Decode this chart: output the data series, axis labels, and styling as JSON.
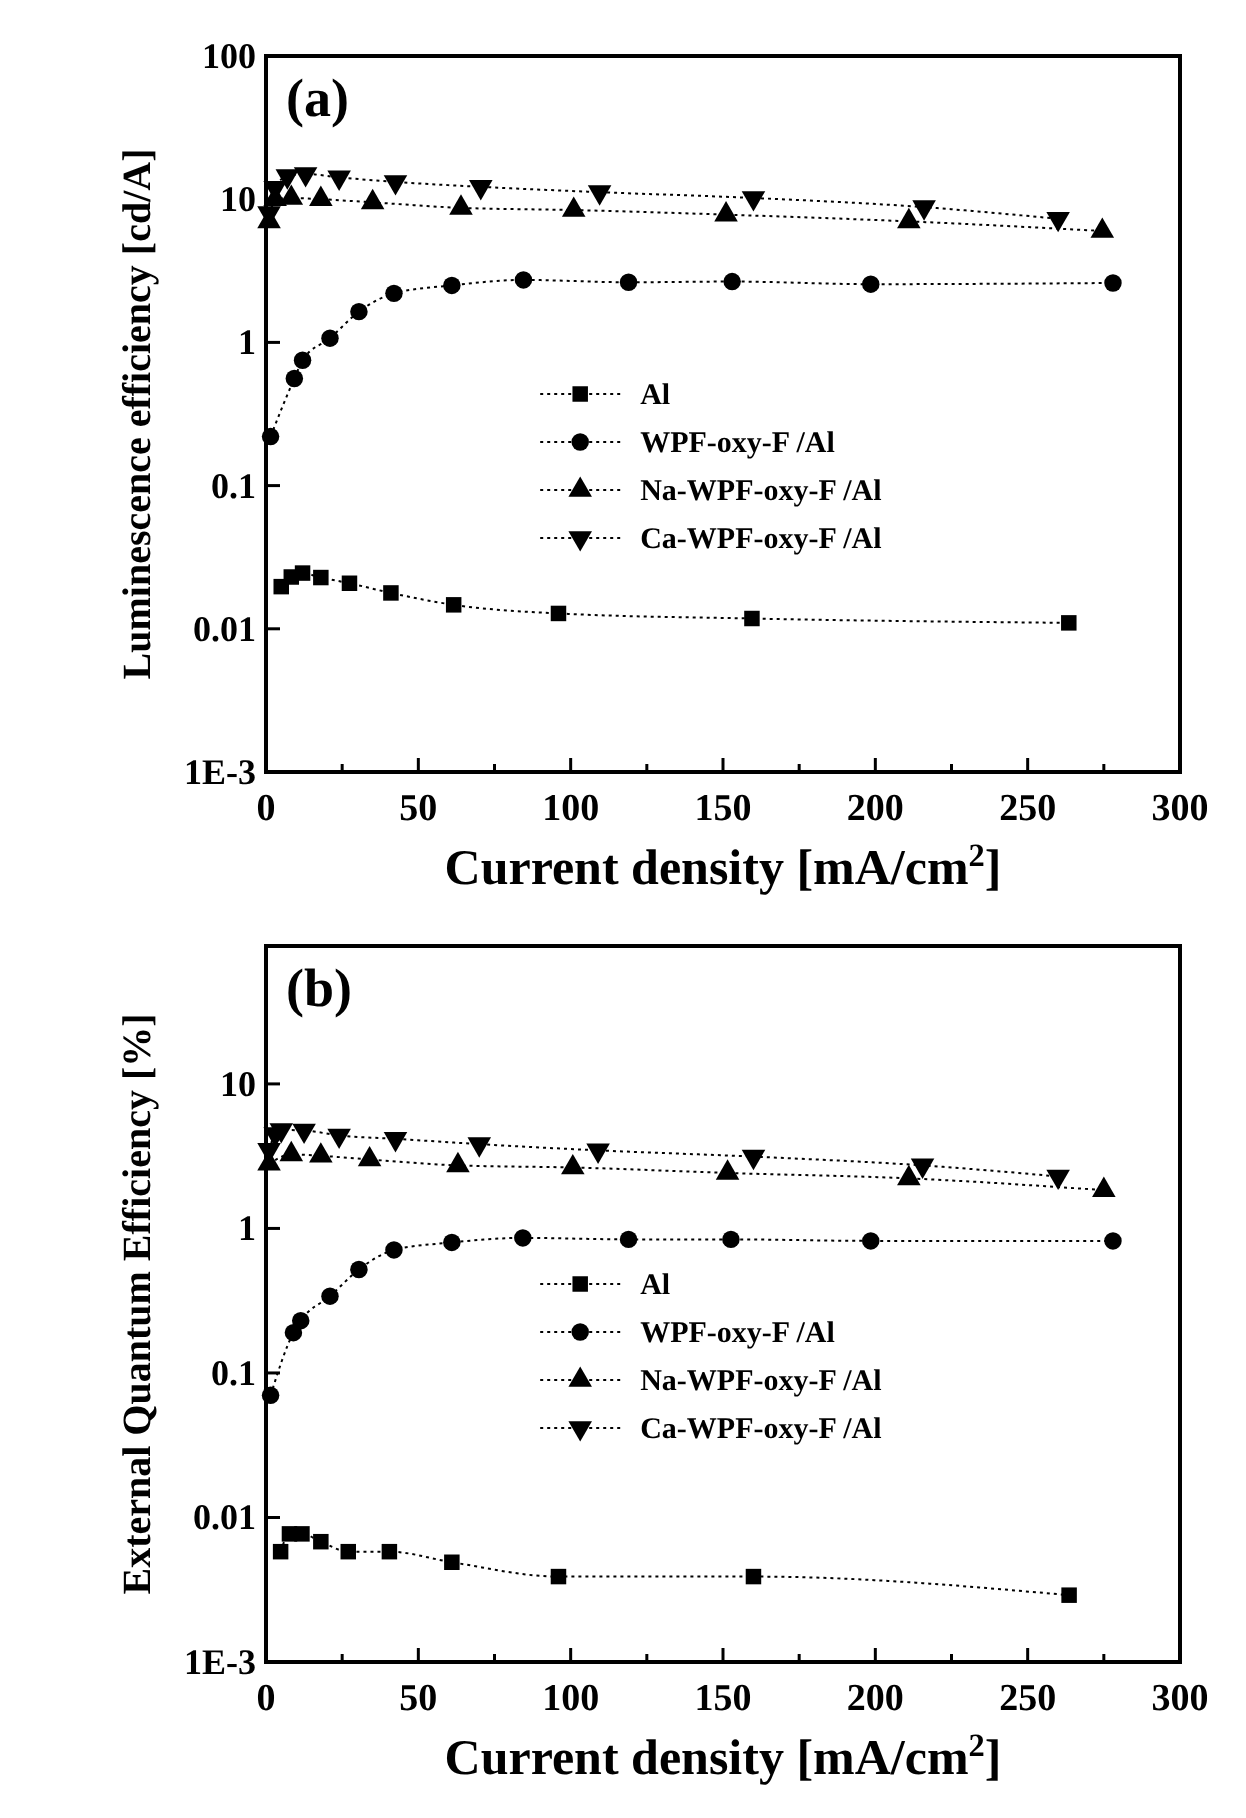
{
  "chart_data": [
    {
      "type": "line",
      "annotations": [
        "(a)"
      ],
      "xlabel": "Current density [mA/cm$^{2}$]",
      "ylabel": "Luminescence efficiency [cd/A]",
      "log": "y",
      "xlim": [
        0,
        300
      ],
      "ylim": [
        0.001,
        100
      ],
      "xticks": [
        0,
        {
          "value": 25,
          "label": null
        },
        50,
        {
          "value": 75,
          "label": null
        },
        100,
        {
          "value": 125,
          "label": null
        },
        150,
        {
          "value": 175,
          "label": null
        },
        200,
        {
          "value": 225,
          "label": null
        },
        250,
        {
          "value": 275,
          "label": null
        },
        300
      ],
      "yticks": [
        {
          "value": 0.001,
          "label": "1E-3"
        },
        0.01,
        0.1,
        1,
        10,
        100
      ],
      "legend": "center",
      "line_style": "dotted",
      "grid": false,
      "series": [
        {
          "name": "Al",
          "color": "#000000",
          "marker": "square",
          "x": [
            5,
            8.3,
            12,
            18,
            27.4,
            41,
            61.6,
            96,
            159.5,
            263.5
          ],
          "values": [
            0.0197,
            0.023,
            0.0245,
            0.0228,
            0.0208,
            0.0178,
            0.0147,
            0.0128,
            0.0118,
            0.011
          ]
        },
        {
          "name": "WPF-oxy-F /Al",
          "color": "#000000",
          "marker": "circle",
          "x": [
            1.5,
            9.3,
            12,
            21,
            30.5,
            42,
            61,
            84.5,
            119,
            153,
            198.5,
            278
          ],
          "values": [
            0.22,
            0.56,
            0.75,
            1.07,
            1.64,
            2.2,
            2.5,
            2.73,
            2.63,
            2.66,
            2.55,
            2.6
          ]
        },
        {
          "name": "Na-WPF-oxy-F /Al",
          "color": "#000000",
          "marker": "triangle",
          "x": [
            1,
            3,
            8.3,
            18,
            35,
            64,
            101,
            151,
            211,
            274.5
          ],
          "values": [
            7,
            10,
            10.2,
            10,
            9.5,
            8.7,
            8.4,
            7.8,
            7,
            6
          ]
        },
        {
          "name": "Ca-WPF-oxy-F /Al",
          "color": "#000000",
          "marker": "triangle-down",
          "x": [
            1,
            3,
            7,
            13,
            24,
            42.5,
            70.5,
            109.5,
            160,
            216,
            260
          ],
          "values": [
            8,
            12,
            14.5,
            15,
            14.2,
            13.2,
            12.2,
            11.2,
            10.2,
            8.8,
            7.3
          ]
        }
      ]
    },
    {
      "type": "line",
      "annotations": [
        "(b)"
      ],
      "xlabel": "Current density [mA/cm$^{2}$]",
      "ylabel": "External Quantum Efficiency [%]",
      "log": "y",
      "xlim": [
        0,
        300
      ],
      "ylim": [
        0.001,
        90
      ],
      "xticks": [
        0,
        {
          "value": 25,
          "label": null
        },
        50,
        {
          "value": 75,
          "label": null
        },
        100,
        {
          "value": 125,
          "label": null
        },
        150,
        {
          "value": 175,
          "label": null
        },
        200,
        {
          "value": 225,
          "label": null
        },
        250,
        {
          "value": 275,
          "label": null
        },
        300
      ],
      "yticks": [
        {
          "value": 0.001,
          "label": "1E-3"
        },
        0.01,
        0.1,
        1,
        10
      ],
      "legend": "center",
      "line_style": "dotted",
      "grid": false,
      "series": [
        {
          "name": "Al",
          "color": "#000000",
          "marker": "square",
          "x": [
            4.8,
            7.7,
            11.8,
            18,
            27,
            40.5,
            61,
            96,
            160,
            263.6
          ],
          "values": [
            0.0058,
            0.0077,
            0.0077,
            0.0068,
            0.0058,
            0.0058,
            0.0049,
            0.0039,
            0.0039,
            0.0029
          ]
        },
        {
          "name": "WPF-oxy-F /Al",
          "color": "#000000",
          "marker": "circle",
          "x": [
            1.5,
            9,
            11.4,
            21,
            30.5,
            42,
            61,
            84.3,
            119,
            152.6,
            198.5,
            278
          ],
          "values": [
            0.07,
            0.19,
            0.23,
            0.34,
            0.52,
            0.71,
            0.8,
            0.86,
            0.84,
            0.84,
            0.82,
            0.82
          ]
        },
        {
          "name": "Na-WPF-oxy-F /Al",
          "color": "#000000",
          "marker": "triangle",
          "x": [
            1,
            3,
            8.3,
            18,
            34,
            63,
            100.7,
            151.5,
            211,
            275
          ],
          "values": [
            2.8,
            null,
            3.25,
            3.18,
            3,
            2.73,
            2.64,
            2.42,
            2.22,
            1.84
          ]
        },
        {
          "name": "Ca-WPF-oxy-F /Al",
          "color": "#000000",
          "marker": "triangle-down",
          "x": [
            1,
            3,
            5,
            12.5,
            24,
            42.5,
            70,
            109,
            160,
            215.5,
            260
          ],
          "values": [
            3.5,
            4.5,
            4.8,
            4.76,
            4.4,
            4.17,
            3.83,
            3.47,
            3.14,
            2.73,
            2.29
          ]
        }
      ]
    }
  ]
}
